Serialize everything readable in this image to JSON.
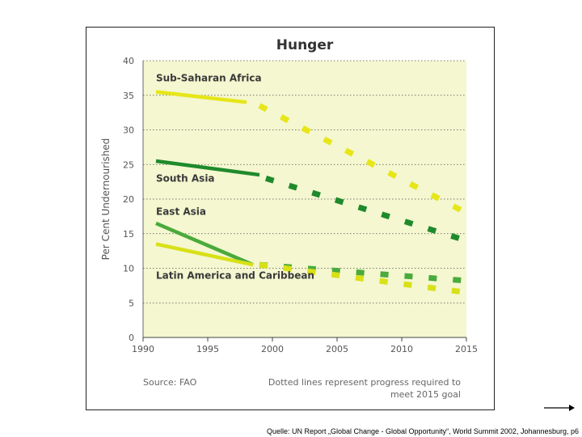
{
  "chart_data": {
    "type": "line",
    "title": "Hunger",
    "xlabel": "",
    "ylabel": "Per Cent Undernourished",
    "xlim": [
      1990,
      2015
    ],
    "ylim": [
      0,
      40
    ],
    "x_ticks": [
      1990,
      1995,
      2000,
      2005,
      2010,
      2015
    ],
    "y_ticks": [
      0,
      5,
      10,
      15,
      20,
      25,
      30,
      35,
      40
    ],
    "grid": "horizontal dotted",
    "series": [
      {
        "name": "Sub-Saharan Africa",
        "color": "#e6e619",
        "actual": {
          "x": [
            1991,
            1998
          ],
          "y": [
            35.5,
            34
          ]
        },
        "goal": {
          "x": [
            1999,
            2015
          ],
          "y": [
            33.5,
            18
          ]
        }
      },
      {
        "name": "South Asia",
        "color": "#1f8a2c",
        "actual": {
          "x": [
            1991,
            1999
          ],
          "y": [
            25.5,
            23.5
          ]
        },
        "goal": {
          "x": [
            1999.5,
            2015
          ],
          "y": [
            23,
            14
          ]
        }
      },
      {
        "name": "East Asia",
        "color": "#4aaa3c",
        "actual": {
          "x": [
            1991,
            1998.5
          ],
          "y": [
            16.5,
            10.5
          ]
        },
        "goal": {
          "x": [
            1999,
            2015
          ],
          "y": [
            10.5,
            8.2
          ]
        }
      },
      {
        "name": "Latin America and Caribbean",
        "color": "#d8e018",
        "actual": {
          "x": [
            1991,
            1998.5
          ],
          "y": [
            13.5,
            10.5
          ]
        },
        "goal": {
          "x": [
            1999,
            2015
          ],
          "y": [
            10.5,
            6.5
          ]
        }
      }
    ],
    "series_labels": [
      {
        "text": "Sub-Saharan Africa",
        "at": [
          1991,
          37
        ]
      },
      {
        "text": "South Asia",
        "at": [
          1991,
          22.5
        ]
      },
      {
        "text": "East Asia",
        "at": [
          1991,
          17.7
        ]
      },
      {
        "text": "Latin America and Caribbean",
        "at": [
          1991,
          8.5
        ]
      }
    ],
    "source": "Source: FAO",
    "note_line1": "Dotted lines represent progress required to",
    "note_line2": "meet 2015 goal",
    "background_color": "#f4f7cf",
    "title_color": "#333333"
  },
  "caption": "Quelle: UN Report „Global Change - Global Opportunity“, World Summit 2002, Johannesburg,  p6"
}
